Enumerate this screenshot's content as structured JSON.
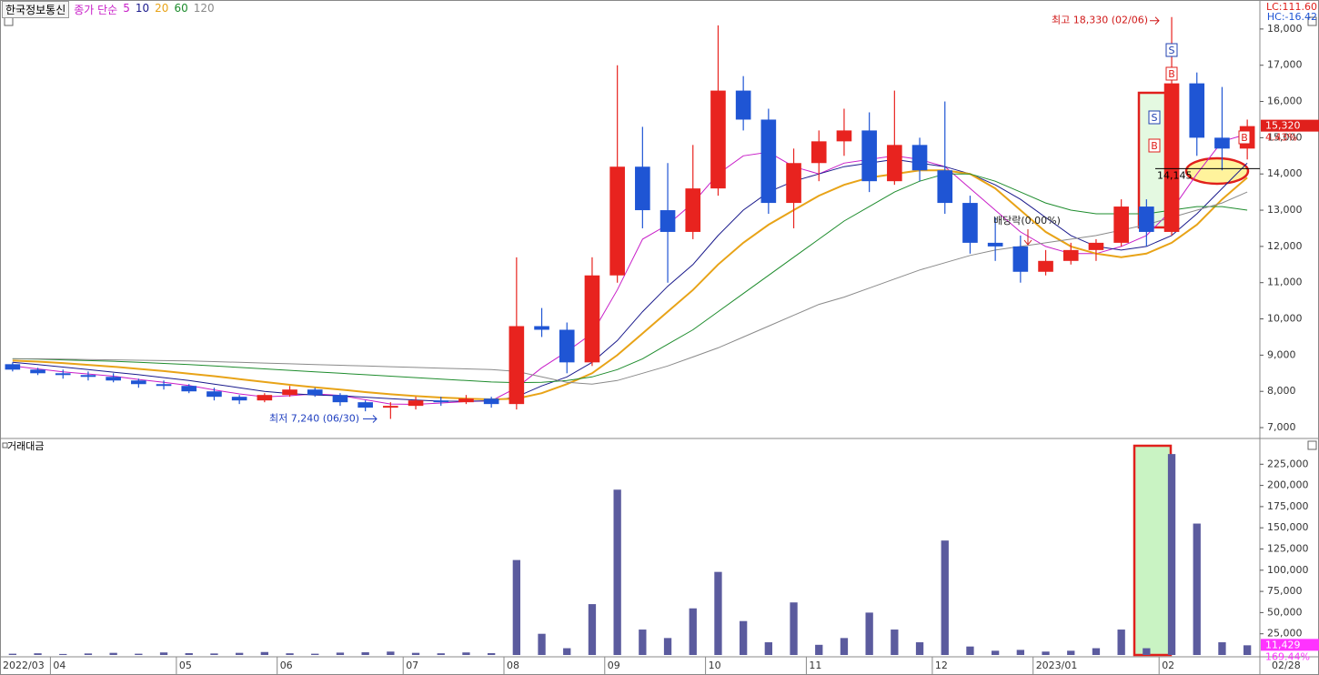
{
  "chart_data": [
    {
      "type": "candlestick",
      "title": "한국정보통신",
      "legend_title": "종가 단순",
      "lc_label": "LC:111.60",
      "hc_label": "HC:-16.42",
      "price_label": "15,320",
      "change_label": "4.43%",
      "up_color": "#e8231f",
      "down_color": "#1f55d4",
      "categories": [
        "2022/03",
        null,
        "04",
        null,
        null,
        null,
        null,
        "05",
        null,
        null,
        null,
        "06",
        null,
        null,
        null,
        null,
        "07",
        null,
        null,
        null,
        "08",
        null,
        null,
        null,
        "09",
        null,
        null,
        null,
        "10",
        null,
        null,
        null,
        "11",
        null,
        null,
        null,
        null,
        "12",
        null,
        null,
        null,
        "2023/01",
        null,
        null,
        null,
        null,
        "02",
        null,
        null,
        "02/28"
      ],
      "open": [
        8750,
        8600,
        8500,
        8450,
        8400,
        8300,
        8200,
        8150,
        8000,
        7850,
        7750,
        7900,
        8050,
        7900,
        7700,
        7550,
        7600,
        7750,
        7700,
        7800,
        7650,
        9800,
        9700,
        8800,
        11200,
        14200,
        13000,
        12400,
        13600,
        16300,
        15500,
        13200,
        14300,
        14900,
        15200,
        13800,
        14800,
        14100,
        13200,
        12100,
        12000,
        11300,
        11600,
        11900,
        12100,
        13100,
        12400,
        16500,
        15000,
        14700
      ],
      "high": [
        8800,
        8650,
        8600,
        8550,
        8500,
        8350,
        8300,
        8200,
        8100,
        7900,
        7950,
        8150,
        8100,
        7950,
        7750,
        7700,
        7850,
        7850,
        7900,
        7850,
        11700,
        10300,
        9900,
        11700,
        17000,
        15300,
        14300,
        14800,
        18100,
        16700,
        15800,
        14700,
        15200,
        15800,
        15700,
        16300,
        15000,
        16000,
        13400,
        12800,
        12300,
        11900,
        12100,
        12200,
        13300,
        13300,
        18330,
        16800,
        16400,
        15500
      ],
      "low": [
        8550,
        8450,
        8350,
        8300,
        8250,
        8100,
        8050,
        7950,
        7750,
        7650,
        7700,
        7850,
        7850,
        7600,
        7450,
        7240,
        7500,
        7600,
        7650,
        7550,
        7500,
        9500,
        8500,
        8700,
        11000,
        12500,
        11000,
        12200,
        13400,
        15200,
        12900,
        12500,
        13800,
        14500,
        13500,
        13700,
        13800,
        12900,
        11800,
        11600,
        11000,
        11200,
        11500,
        11600,
        12000,
        12000,
        12300,
        14500,
        14100,
        14400
      ],
      "close": [
        8600,
        8500,
        8450,
        8400,
        8300,
        8200,
        8150,
        8000,
        7850,
        7750,
        7900,
        8050,
        7900,
        7700,
        7550,
        7600,
        7750,
        7700,
        7800,
        7650,
        9800,
        9700,
        8800,
        11200,
        14200,
        13000,
        12400,
        13600,
        16300,
        15500,
        13200,
        14300,
        14900,
        15200,
        13800,
        14800,
        14100,
        13200,
        12100,
        12000,
        11300,
        11600,
        11900,
        12100,
        13100,
        12400,
        16500,
        15000,
        14700,
        15320
      ],
      "series": [
        {
          "name": "5",
          "color": "#c81ec8",
          "values": [
            8700,
            8620,
            8540,
            8480,
            8420,
            8330,
            8250,
            8160,
            8040,
            7930,
            7850,
            7880,
            7930,
            7890,
            7770,
            7650,
            7640,
            7680,
            7720,
            7740,
            8100,
            8650,
            9100,
            9600,
            10800,
            12200,
            12600,
            13200,
            14000,
            14500,
            14600,
            14200,
            14000,
            14300,
            14400,
            14500,
            14400,
            14200,
            13600,
            13000,
            12400,
            12000,
            11800,
            11800,
            12000,
            12300,
            13000,
            14000,
            14900,
            15100
          ]
        },
        {
          "name": "10",
          "color": "#1a1a8c",
          "values": [
            8800,
            8740,
            8670,
            8600,
            8530,
            8460,
            8380,
            8300,
            8200,
            8100,
            8000,
            7940,
            7900,
            7880,
            7840,
            7800,
            7760,
            7730,
            7730,
            7740,
            7850,
            8150,
            8400,
            8800,
            9400,
            10200,
            10900,
            11500,
            12300,
            13000,
            13500,
            13800,
            14000,
            14200,
            14300,
            14400,
            14300,
            14200,
            14000,
            13700,
            13300,
            12800,
            12300,
            12000,
            11900,
            12000,
            12300,
            12900,
            13600,
            14300
          ]
        },
        {
          "name": "20",
          "color": "#e8a317",
          "values": [
            8850,
            8820,
            8780,
            8730,
            8680,
            8620,
            8560,
            8490,
            8420,
            8340,
            8260,
            8180,
            8110,
            8050,
            7980,
            7920,
            7870,
            7830,
            7800,
            7780,
            7800,
            7950,
            8200,
            8500,
            9000,
            9600,
            10200,
            10800,
            11500,
            12100,
            12600,
            13000,
            13400,
            13700,
            13900,
            14000,
            14100,
            14100,
            14000,
            13600,
            13000,
            12400,
            12000,
            11800,
            11700,
            11800,
            12100,
            12600,
            13300,
            13900
          ]
        },
        {
          "name": "60",
          "color": "#1e8c2d",
          "values": [
            8900,
            8890,
            8870,
            8850,
            8830,
            8800,
            8770,
            8740,
            8700,
            8660,
            8620,
            8580,
            8540,
            8500,
            8460,
            8420,
            8380,
            8340,
            8300,
            8260,
            8240,
            8250,
            8300,
            8400,
            8600,
            8900,
            9300,
            9700,
            10200,
            10700,
            11200,
            11700,
            12200,
            12700,
            13100,
            13500,
            13800,
            14000,
            14000,
            13800,
            13500,
            13200,
            13000,
            12900,
            12900,
            12900,
            13000,
            13100,
            13100,
            13000
          ]
        },
        {
          "name": "120",
          "color": "#8a8a8a",
          "values": [
            8900,
            8900,
            8890,
            8880,
            8870,
            8860,
            8850,
            8840,
            8820,
            8800,
            8780,
            8760,
            8740,
            8720,
            8700,
            8680,
            8660,
            8640,
            8620,
            8600,
            8550,
            8400,
            8250,
            8200,
            8300,
            8500,
            8700,
            8950,
            9200,
            9500,
            9800,
            10100,
            10400,
            10600,
            10850,
            11100,
            11350,
            11550,
            11750,
            11900,
            12000,
            12100,
            12200,
            12300,
            12450,
            12600,
            12800,
            13000,
            13200,
            13500
          ]
        }
      ],
      "ylim": [
        6750,
        18750
      ],
      "yticks": [
        {
          "value": 7000,
          "label": "7,000"
        },
        {
          "value": 8000,
          "label": "8,000"
        },
        {
          "value": 9000,
          "label": "9,000"
        },
        {
          "value": 10000,
          "label": "10,000"
        },
        {
          "value": 11000,
          "label": "11,000"
        },
        {
          "value": 12000,
          "label": "12,000"
        },
        {
          "value": 13000,
          "label": "13,000"
        },
        {
          "value": 14000,
          "label": "14,000"
        },
        {
          "value": 15000,
          "label": "15,000"
        },
        {
          "value": 16000,
          "label": "16,000"
        },
        {
          "value": 17000,
          "label": "17,000"
        },
        {
          "value": 18000,
          "label": "18,000"
        }
      ],
      "hline": {
        "value": 14145,
        "label": "14,145"
      },
      "annotations": [
        {
          "text": "최고 18,330 (02/06)",
          "value": 18330
        },
        {
          "text": "최저 7,240 (06/30)",
          "value": 7240
        },
        {
          "text": "배당락(0.00%)"
        }
      ],
      "signals": [
        "S",
        "B",
        "S",
        "B",
        "B"
      ]
    },
    {
      "type": "bar",
      "title": "거래대금",
      "color": "#5b5b9e",
      "last_label": "11,429",
      "change_label": "169.44%",
      "values": [
        1500,
        2000,
        1200,
        1800,
        2500,
        1500,
        3000,
        2200,
        1800,
        2500,
        3500,
        2000,
        1500,
        2800,
        3200,
        4000,
        2500,
        2000,
        3000,
        2200,
        112000,
        25000,
        8000,
        60000,
        195000,
        30000,
        20000,
        55000,
        98000,
        40000,
        15000,
        62000,
        12000,
        20000,
        50000,
        30000,
        15000,
        135000,
        10000,
        5000,
        6000,
        4000,
        5000,
        8000,
        30000,
        8000,
        237000,
        155000,
        15000,
        11429
      ],
      "ylim": [
        0,
        250000
      ],
      "yticks": [
        {
          "value": 25000,
          "label": "25,000"
        },
        {
          "value": 50000,
          "label": "50,000"
        },
        {
          "value": 75000,
          "label": "75,000"
        },
        {
          "value": 100000,
          "label": "100,000"
        },
        {
          "value": 125000,
          "label": "125,000"
        },
        {
          "value": 150000,
          "label": "150,000"
        },
        {
          "value": 175000,
          "label": "175,000"
        },
        {
          "value": 200000,
          "label": "200,000"
        },
        {
          "value": 225000,
          "label": "225,000"
        }
      ]
    }
  ]
}
